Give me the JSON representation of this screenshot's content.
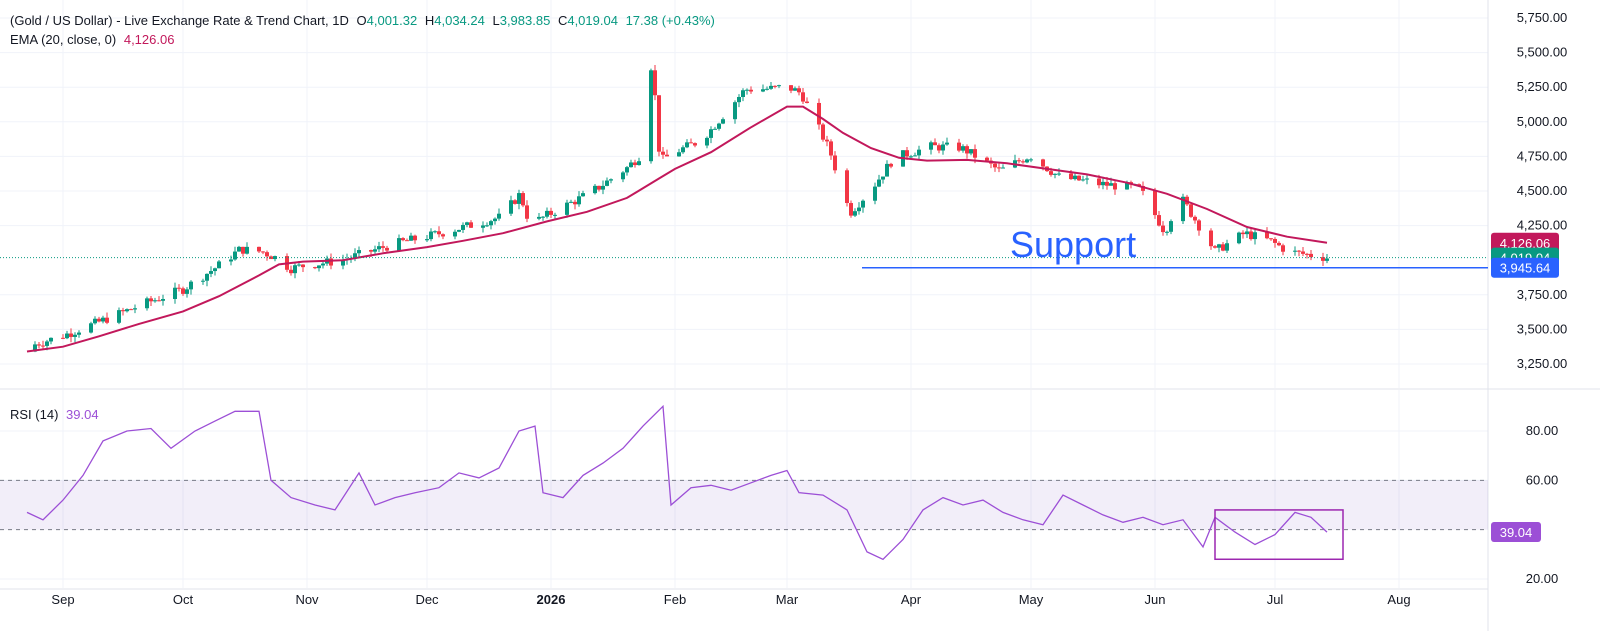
{
  "header": {
    "symbol": "(Gold / US Dollar) - Live Exchange Rate & Trend Chart, 1D",
    "o_label": "O",
    "o_value": "4,001.32",
    "h_label": "H",
    "h_value": "4,034.24",
    "l_label": "L",
    "l_value": "3,983.85",
    "c_label": "C",
    "c_value": "4,019.04",
    "change": "17.38 (+0.43%)",
    "ema_label": "EMA (20, close, 0)",
    "ema_value": "4,126.06",
    "rsi_label": "RSI (14)",
    "rsi_value": "39.04"
  },
  "annotations": {
    "support_text": "Support"
  },
  "colors": {
    "up": "#089981",
    "down": "#f23645",
    "ema": "#c2185b",
    "rsi": "#9c4fd6",
    "support": "#2962ff",
    "price_dotted": "#089981"
  },
  "chart_data": [
    {
      "type": "candlestick",
      "x_tick_labels": [
        "Sep",
        "Oct",
        "Nov",
        "Dec",
        "2026",
        "Feb",
        "Mar",
        "Apr",
        "May",
        "Jun",
        "Jul",
        "Aug"
      ],
      "y_tick_labels": [
        "5,750.00",
        "5,500.00",
        "5,250.00",
        "5,000.00",
        "4,750.00",
        "4,500.00",
        "4,250.00",
        "3,750.00",
        "3,500.00",
        "3,250.00"
      ],
      "ylim": [
        3150,
        5800
      ],
      "close_last": 4019.04,
      "ema_last": 4126.06,
      "support_level": 3945.64,
      "price_labels": {
        "ema": "4,126.06",
        "close": "4,019.04",
        "support": "3,945.64"
      },
      "grid": true,
      "series": [
        {
          "name": "EMA (20, close, 0)",
          "points": [
            [
              "2025-08-23",
              3340
            ],
            [
              "2025-09-01",
              3375
            ],
            [
              "2025-09-10",
              3450
            ],
            [
              "2025-09-20",
              3540
            ],
            [
              "2025-10-01",
              3630
            ],
            [
              "2025-10-10",
              3740
            ],
            [
              "2025-10-20",
              3890
            ],
            [
              "2025-10-25",
              3970
            ],
            [
              "2025-10-31",
              3990
            ],
            [
              "2025-11-10",
              4000
            ],
            [
              "2025-11-20",
              4050
            ],
            [
              "2025-12-01",
              4095
            ],
            [
              "2025-12-10",
              4140
            ],
            [
              "2025-12-20",
              4195
            ],
            [
              "2025-12-31",
              4280
            ],
            [
              "2026-01-10",
              4350
            ],
            [
              "2026-01-20",
              4450
            ],
            [
              "2026-01-28",
              4590
            ],
            [
              "2026-02-01",
              4660
            ],
            [
              "2026-02-10",
              4780
            ],
            [
              "2026-02-20",
              4960
            ],
            [
              "2026-03-01",
              5110
            ],
            [
              "2026-03-05",
              5110
            ],
            [
              "2026-03-10",
              5020
            ],
            [
              "2026-03-15",
              4920
            ],
            [
              "2026-03-22",
              4810
            ],
            [
              "2026-03-29",
              4740
            ],
            [
              "2026-04-05",
              4720
            ],
            [
              "2026-04-15",
              4725
            ],
            [
              "2026-04-25",
              4700
            ],
            [
              "2026-05-05",
              4660
            ],
            [
              "2026-05-15",
              4620
            ],
            [
              "2026-05-25",
              4560
            ],
            [
              "2026-06-04",
              4480
            ],
            [
              "2026-06-14",
              4370
            ],
            [
              "2026-06-24",
              4240
            ],
            [
              "2026-07-04",
              4170
            ],
            [
              "2026-07-14",
              4126
            ]
          ]
        }
      ]
    },
    {
      "type": "line",
      "title": "RSI (14)",
      "y_tick_labels": [
        "80.00",
        "60.00",
        "20.00"
      ],
      "ylim": [
        15,
        95
      ],
      "band": [
        40,
        60
      ],
      "last": 39.04,
      "series": [
        {
          "name": "RSI (14)",
          "points": [
            [
              "2025-08-23",
              47
            ],
            [
              "2025-08-27",
              44
            ],
            [
              "2025-09-01",
              52
            ],
            [
              "2025-09-06",
              62
            ],
            [
              "2025-09-11",
              76
            ],
            [
              "2025-09-17",
              80
            ],
            [
              "2025-09-23",
              81
            ],
            [
              "2025-09-28",
              73
            ],
            [
              "2025-10-04",
              80
            ],
            [
              "2025-10-09",
              84
            ],
            [
              "2025-10-14",
              88
            ],
            [
              "2025-10-20",
              88
            ],
            [
              "2025-10-23",
              60
            ],
            [
              "2025-10-28",
              53
            ],
            [
              "2025-11-03",
              50
            ],
            [
              "2025-11-08",
              48
            ],
            [
              "2025-11-14",
              63
            ],
            [
              "2025-11-18",
              50
            ],
            [
              "2025-11-23",
              53
            ],
            [
              "2025-11-28",
              55
            ],
            [
              "2025-12-04",
              57
            ],
            [
              "2025-12-09",
              63
            ],
            [
              "2025-12-14",
              61
            ],
            [
              "2025-12-19",
              65
            ],
            [
              "2025-12-24",
              80
            ],
            [
              "2025-12-28",
              82
            ],
            [
              "2025-12-30",
              55
            ],
            [
              "2026-01-04",
              53
            ],
            [
              "2026-01-09",
              62
            ],
            [
              "2026-01-14",
              67
            ],
            [
              "2026-01-19",
              73
            ],
            [
              "2026-01-24",
              82
            ],
            [
              "2026-01-29",
              90
            ],
            [
              "2026-01-31",
              50
            ],
            [
              "2026-02-05",
              57
            ],
            [
              "2026-02-10",
              58
            ],
            [
              "2026-02-15",
              56
            ],
            [
              "2026-02-20",
              59
            ],
            [
              "2026-02-25",
              62
            ],
            [
              "2026-03-01",
              64
            ],
            [
              "2026-03-04",
              55
            ],
            [
              "2026-03-10",
              54
            ],
            [
              "2026-03-16",
              48
            ],
            [
              "2026-03-21",
              31
            ],
            [
              "2026-03-25",
              28
            ],
            [
              "2026-03-30",
              36
            ],
            [
              "2026-04-04",
              48
            ],
            [
              "2026-04-09",
              53
            ],
            [
              "2026-04-14",
              50
            ],
            [
              "2026-04-19",
              52
            ],
            [
              "2026-04-24",
              47
            ],
            [
              "2026-04-29",
              44
            ],
            [
              "2026-05-04",
              42
            ],
            [
              "2026-05-09",
              54
            ],
            [
              "2026-05-14",
              50
            ],
            [
              "2026-05-19",
              46
            ],
            [
              "2026-05-24",
              43
            ],
            [
              "2026-05-29",
              45
            ],
            [
              "2026-06-03",
              42
            ],
            [
              "2026-06-08",
              44
            ],
            [
              "2026-06-13",
              33
            ],
            [
              "2026-06-16",
              45
            ],
            [
              "2026-06-21",
              39
            ],
            [
              "2026-06-26",
              34
            ],
            [
              "2026-07-01",
              38
            ],
            [
              "2026-07-06",
              47
            ],
            [
              "2026-07-10",
              45
            ],
            [
              "2026-07-14",
              39
            ]
          ]
        }
      ],
      "highlight_box": {
        "from": "2026-06-16",
        "to": "2026-07-18",
        "low": 28,
        "high": 48
      }
    }
  ]
}
